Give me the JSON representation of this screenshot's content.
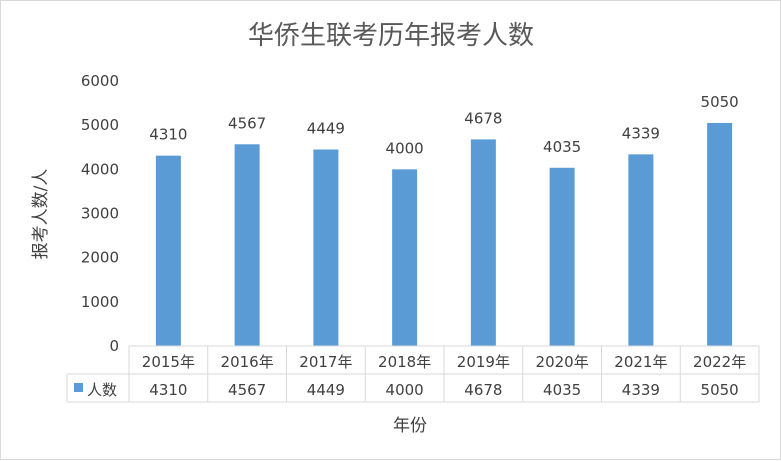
{
  "chart_data": {
    "type": "bar",
    "title": "华侨生联考历年报考人数",
    "xlabel": "年份",
    "ylabel": "报考人数/人",
    "categories": [
      "2015年",
      "2016年",
      "2017年",
      "2018年",
      "2019年",
      "2020年",
      "2021年",
      "2022年"
    ],
    "series": [
      {
        "name": "人数",
        "values": [
          4310,
          4567,
          4449,
          4000,
          4678,
          4035,
          4339,
          5050
        ],
        "color": "#5b9bd5"
      }
    ],
    "ylim": [
      0,
      6000
    ],
    "yticks": [
      0,
      1000,
      2000,
      3000,
      4000,
      5000,
      6000
    ],
    "grid": false,
    "data_labels": true,
    "data_table": true,
    "legend": "data-table"
  }
}
